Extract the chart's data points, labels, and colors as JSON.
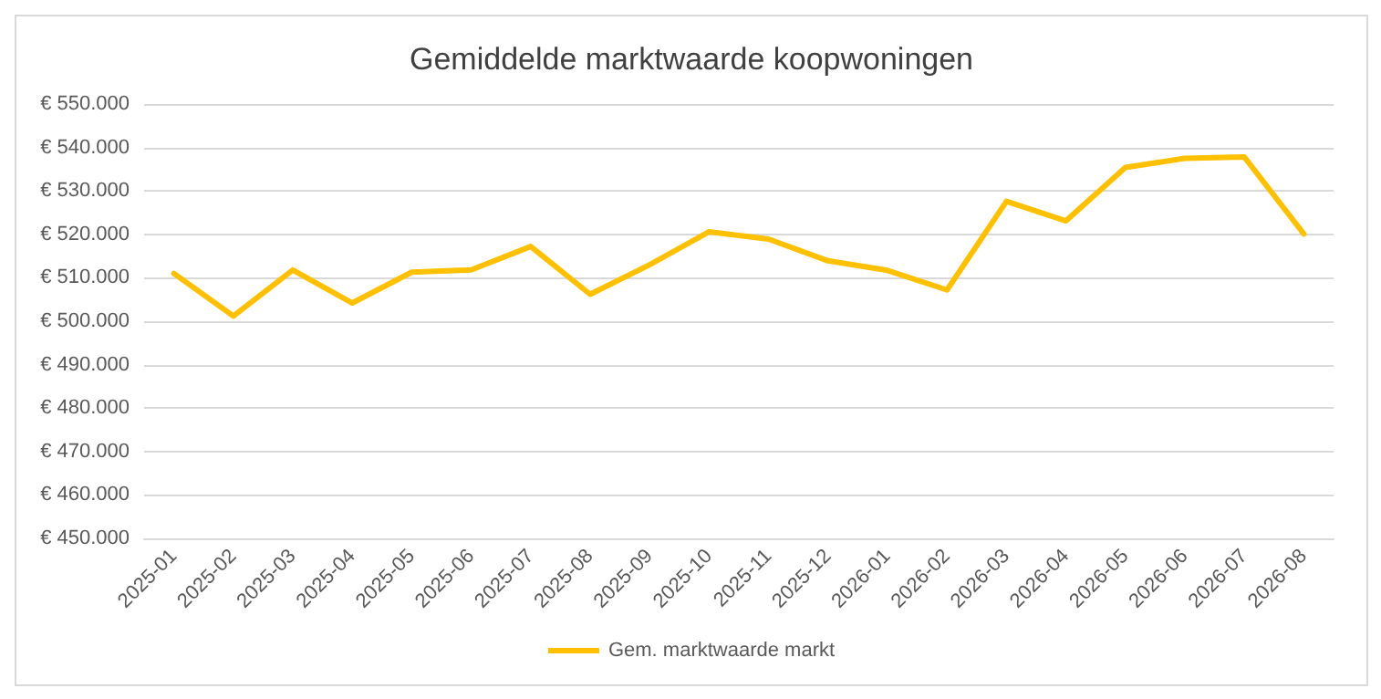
{
  "chart_data": {
    "type": "line",
    "title": "Gemiddelde marktwaarde koopwoningen",
    "categories": [
      "2025-01",
      "2025-02",
      "2025-03",
      "2025-04",
      "2025-05",
      "2025-06",
      "2025-07",
      "2025-08",
      "2025-09",
      "2025-10",
      "2025-11",
      "2025-12",
      "2026-01",
      "2026-02",
      "2026-03",
      "2026-04",
      "2026-05",
      "2026-06",
      "2026-07",
      "2026-08"
    ],
    "series": [
      {
        "name": "Gem. marktwaarde markt",
        "color": "#ffc000",
        "values": [
          511000,
          501200,
          511800,
          504200,
          511300,
          511800,
          517200,
          506200,
          513000,
          520600,
          518900,
          513900,
          511700,
          507200,
          527600,
          523100,
          535400,
          537500,
          537800,
          520100
        ]
      }
    ],
    "ylim": [
      450000,
      550000
    ],
    "yticks": [
      {
        "value": 450000,
        "label": "€ 450.000"
      },
      {
        "value": 460000,
        "label": "€ 460.000"
      },
      {
        "value": 470000,
        "label": "€ 470.000"
      },
      {
        "value": 480000,
        "label": "€ 480.000"
      },
      {
        "value": 490000,
        "label": "€ 490.000"
      },
      {
        "value": 500000,
        "label": "€ 500.000"
      },
      {
        "value": 510000,
        "label": "€ 510.000"
      },
      {
        "value": 520000,
        "label": "€ 520.000"
      },
      {
        "value": 530000,
        "label": "€ 530.000"
      },
      {
        "value": 540000,
        "label": "€ 540.000"
      },
      {
        "value": 550000,
        "label": "€ 550.000"
      }
    ],
    "grid": "y",
    "legend": "bottom",
    "marker": "none",
    "line_style": "solid"
  }
}
